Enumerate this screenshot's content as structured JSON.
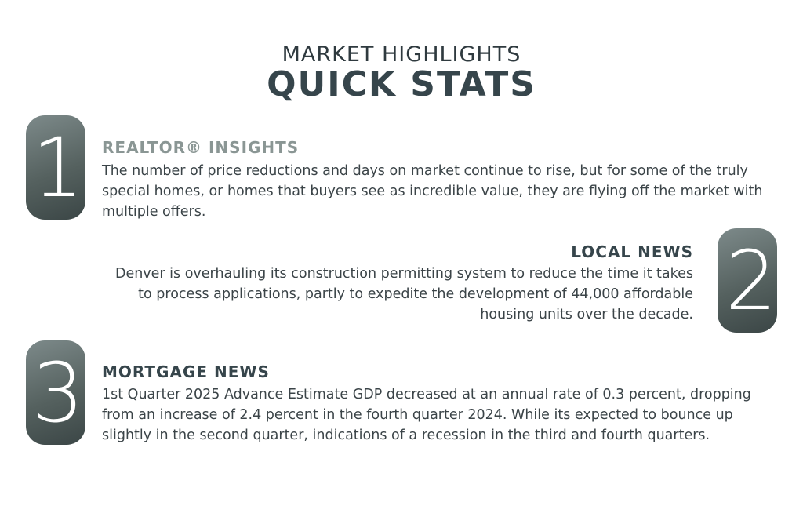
{
  "header": {
    "subtitle": "MARKET HIGHLIGHTS",
    "title": "QUICK STATS"
  },
  "sections": [
    {
      "number": "1",
      "title": "REALTOR® INSIGHTS",
      "text": "The number of price reductions and days on market continue to rise, but for some of the truly special homes, or homes that buyers see as incredible value, they are flying off the market with multiple offers."
    },
    {
      "number": "2",
      "title": "LOCAL NEWS",
      "text": "Denver is overhauling its construction permitting system to reduce the time it takes to process applications, partly to expedite the development of 44,000 affordable housing units over the decade."
    },
    {
      "number": "3",
      "title": "MORTGAGE NEWS",
      "text": "1st Quarter 2025 Advance Estimate GDP decreased at an annual rate of 0.3 percent, dropping from an increase of 2.4 percent in the fourth quarter 2024. While its expected to bounce up slightly in the second quarter, indications of a recession in the third and fourth quarters."
    }
  ],
  "colors": {
    "heading": "#36454b",
    "accent_title": "#8a9694",
    "pill_gradient_start": "#7d8a8a",
    "pill_gradient_end": "#3b4646"
  }
}
